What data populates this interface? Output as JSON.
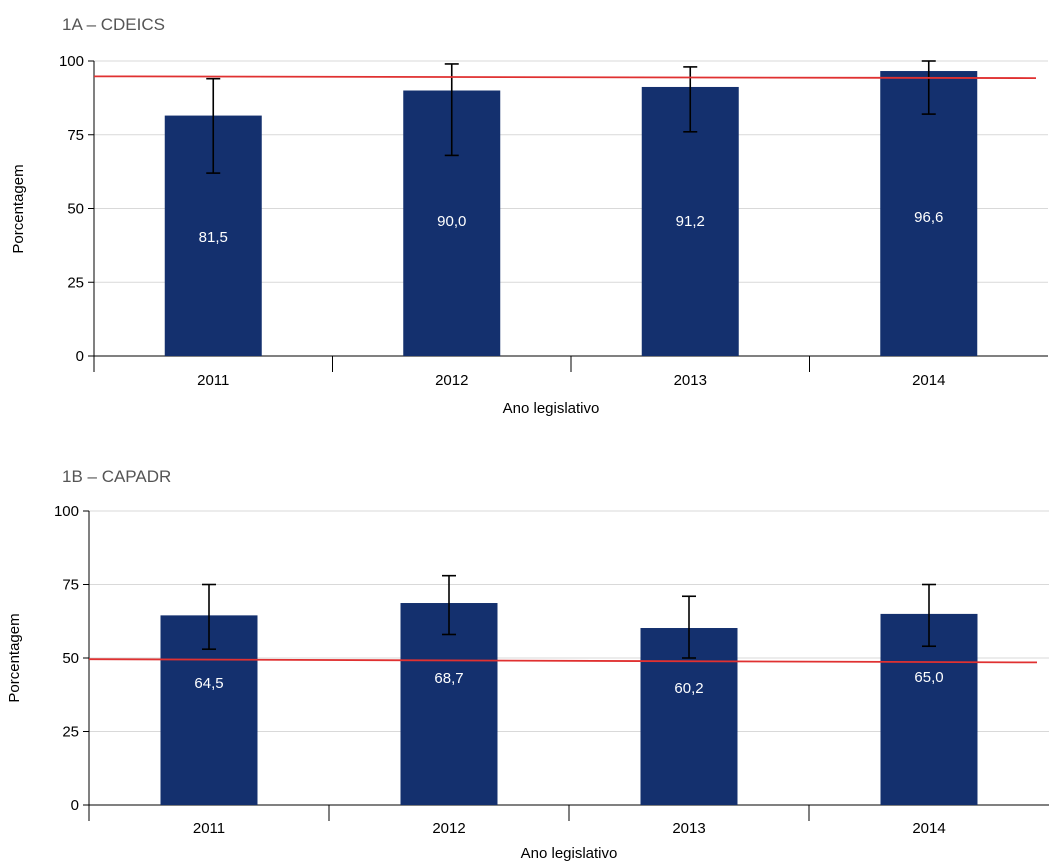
{
  "colors": {
    "bar": "#14306e",
    "reference_line": "#e03131",
    "grid": "#d9d9d9"
  },
  "chart_data": [
    {
      "type": "bar",
      "title": "1A – CDEICS",
      "xlabel": "Ano legislativo",
      "ylabel": "Porcentagem",
      "ylim": [
        0,
        100
      ],
      "yticks": [
        0,
        25,
        50,
        75,
        100
      ],
      "grid": true,
      "categories": [
        "2011",
        "2012",
        "2013",
        "2014"
      ],
      "values": [
        81.5,
        90.0,
        91.2,
        96.6
      ],
      "value_labels": [
        "81,5",
        "90,0",
        "91,2",
        "96,6"
      ],
      "error_low": [
        62,
        68,
        76,
        82
      ],
      "error_high": [
        94,
        99,
        98,
        100
      ],
      "reference_line": [
        94.8,
        94.2
      ]
    },
    {
      "type": "bar",
      "title": "1B – CAPADR",
      "xlabel": "Ano legislativo",
      "ylabel": "Porcentagem",
      "ylim": [
        0,
        100
      ],
      "yticks": [
        0,
        25,
        50,
        75,
        100
      ],
      "grid": true,
      "categories": [
        "2011",
        "2012",
        "2013",
        "2014"
      ],
      "values": [
        64.5,
        68.7,
        60.2,
        65.0
      ],
      "value_labels": [
        "64,5",
        "68,7",
        "60,2",
        "65,0"
      ],
      "error_low": [
        53,
        58,
        50,
        54
      ],
      "error_high": [
        75,
        78,
        71,
        75
      ],
      "reference_line": [
        49.6,
        48.5
      ]
    }
  ]
}
